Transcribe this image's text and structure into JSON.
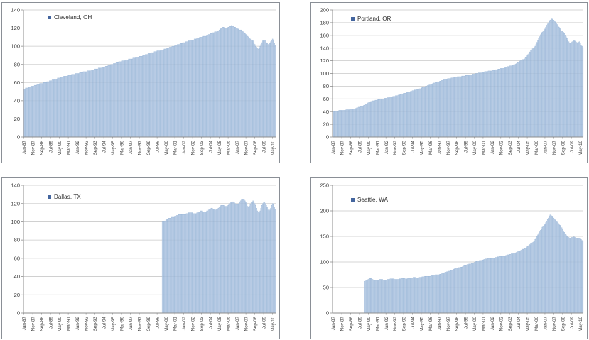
{
  "page": {
    "background": "#FFFFFF"
  },
  "colors": {
    "bar_fill": "#B9CCE4",
    "bar_stroke": "#8FAFD4",
    "grid": "#C9C9C9",
    "axis": "#8E8E8E",
    "tick_text": "#3B3B3B",
    "legend_marker": "#44659E",
    "panel_border": "#8A8F96"
  },
  "chart_data": {
    "type": "bar",
    "grid": true,
    "legend_position": "top-left-inside",
    "x_start": "Jan-87",
    "x_end": "Aug-10",
    "total_months": 284,
    "x_label_interval_months": 10,
    "x_tick_labels": [
      "Jan-87",
      "Nov-87",
      "Sep-88",
      "Jul-89",
      "May-90",
      "Mar-91",
      "Jan-92",
      "Nov-92",
      "Sep-93",
      "Jul-94",
      "May-95",
      "Mar-96",
      "Jan-97",
      "Nov-97",
      "Sep-98",
      "Jul-99",
      "May-00",
      "Mar-01",
      "Jan-02",
      "Nov-02",
      "Sep-03",
      "Jul-04",
      "May-05",
      "Mar-06",
      "Jan-07",
      "Nov-07",
      "Sep-08",
      "Jul-09",
      "May-10"
    ],
    "charts": [
      {
        "legend": "Cleveland, OH",
        "ylim": [
          0,
          140
        ],
        "y_step": 20,
        "start_month": "Jan-87",
        "start_offset": 0,
        "values": [
          53,
          53,
          54,
          54,
          54,
          55,
          55,
          55,
          56,
          56,
          56,
          56,
          57,
          57,
          57,
          58,
          58,
          58,
          59,
          59,
          59,
          59,
          60,
          60,
          60,
          60,
          61,
          61,
          61,
          62,
          62,
          62,
          63,
          63,
          63,
          64,
          64,
          64,
          65,
          65,
          65,
          66,
          66,
          66,
          66,
          67,
          67,
          67,
          67,
          67,
          68,
          68,
          68,
          68,
          69,
          69,
          69,
          69,
          70,
          70,
          70,
          70,
          70,
          71,
          71,
          71,
          71,
          72,
          72,
          72,
          72,
          72,
          73,
          73,
          73,
          73,
          74,
          74,
          74,
          74,
          75,
          75,
          75,
          75,
          76,
          76,
          76,
          76,
          77,
          77,
          77,
          77,
          78,
          78,
          78,
          79,
          79,
          79,
          80,
          80,
          80,
          81,
          81,
          81,
          82,
          82,
          82,
          83,
          83,
          83,
          83,
          84,
          84,
          84,
          85,
          85,
          85,
          85,
          86,
          86,
          86,
          86,
          86,
          87,
          87,
          87,
          88,
          88,
          88,
          88,
          89,
          89,
          89,
          89,
          90,
          90,
          90,
          91,
          91,
          91,
          92,
          92,
          92,
          92,
          93,
          93,
          93,
          94,
          94,
          94,
          95,
          95,
          95,
          95,
          96,
          96,
          96,
          96,
          97,
          97,
          97,
          98,
          98,
          98,
          99,
          99,
          99,
          100,
          100,
          100,
          101,
          101,
          101,
          102,
          102,
          102,
          103,
          103,
          103,
          104,
          104,
          104,
          105,
          105,
          105,
          106,
          106,
          106,
          107,
          107,
          107,
          107,
          108,
          108,
          108,
          109,
          109,
          109,
          110,
          110,
          110,
          110,
          111,
          111,
          111,
          111,
          112,
          112,
          113,
          113,
          114,
          114,
          114,
          115,
          115,
          116,
          116,
          116,
          117,
          117,
          118,
          119,
          120,
          120,
          121,
          121,
          120,
          120,
          120,
          120,
          121,
          121,
          122,
          122,
          123,
          122,
          122,
          121,
          121,
          120,
          120,
          119,
          119,
          118,
          118,
          118,
          117,
          116,
          115,
          114,
          113,
          112,
          111,
          110,
          109,
          108,
          107,
          107,
          106,
          104,
          102,
          100,
          99,
          98,
          97,
          98,
          100,
          102,
          104,
          106,
          107,
          107,
          106,
          104,
          103,
          102,
          102,
          103,
          105,
          107,
          108,
          106,
          103,
          101
        ]
      },
      {
        "legend": "Portland, OR",
        "ylim": [
          0,
          200
        ],
        "y_step": 20,
        "start_month": "Jan-87",
        "start_offset": 0,
        "values": [
          41,
          41,
          41,
          41,
          41,
          41,
          41,
          42,
          42,
          42,
          42,
          42,
          42,
          42,
          42,
          43,
          43,
          43,
          43,
          43,
          44,
          44,
          44,
          44,
          44,
          45,
          45,
          46,
          46,
          47,
          47,
          48,
          48,
          49,
          49,
          50,
          50,
          51,
          52,
          53,
          54,
          55,
          55,
          56,
          56,
          57,
          57,
          57,
          58,
          58,
          58,
          59,
          59,
          59,
          60,
          60,
          60,
          60,
          61,
          61,
          61,
          61,
          62,
          62,
          62,
          63,
          63,
          63,
          64,
          64,
          64,
          65,
          65,
          65,
          66,
          66,
          67,
          67,
          68,
          68,
          69,
          69,
          69,
          70,
          70,
          70,
          71,
          71,
          72,
          72,
          73,
          73,
          74,
          74,
          74,
          75,
          75,
          75,
          76,
          76,
          77,
          78,
          78,
          79,
          79,
          80,
          80,
          81,
          81,
          82,
          82,
          83,
          83,
          84,
          85,
          85,
          86,
          86,
          87,
          87,
          87,
          88,
          88,
          89,
          89,
          90,
          90,
          91,
          91,
          91,
          92,
          92,
          92,
          92,
          93,
          93,
          93,
          94,
          94,
          94,
          94,
          95,
          95,
          95,
          95,
          95,
          96,
          96,
          96,
          96,
          97,
          97,
          97,
          97,
          98,
          98,
          98,
          98,
          99,
          99,
          99,
          100,
          100,
          100,
          100,
          101,
          101,
          101,
          101,
          102,
          102,
          102,
          103,
          103,
          103,
          103,
          104,
          104,
          104,
          104,
          104,
          105,
          105,
          105,
          106,
          106,
          106,
          107,
          107,
          107,
          108,
          108,
          108,
          108,
          109,
          109,
          110,
          110,
          111,
          111,
          112,
          112,
          112,
          113,
          113,
          114,
          114,
          115,
          116,
          117,
          118,
          119,
          120,
          121,
          121,
          122,
          122,
          123,
          125,
          126,
          128,
          130,
          132,
          134,
          136,
          137,
          139,
          140,
          141,
          143,
          146,
          149,
          152,
          155,
          158,
          161,
          163,
          165,
          166,
          168,
          170,
          173,
          176,
          178,
          180,
          182,
          184,
          185,
          186,
          185,
          184,
          183,
          181,
          179,
          177,
          175,
          173,
          171,
          169,
          167,
          166,
          165,
          163,
          160,
          158,
          155,
          152,
          150,
          148,
          148,
          149,
          150,
          151,
          152,
          151,
          150,
          149,
          148,
          149,
          150,
          148,
          145,
          143,
          141
        ]
      },
      {
        "legend": "Dallas, TX",
        "ylim": [
          0,
          140
        ],
        "y_step": 20,
        "start_month": "Jan-00",
        "start_offset": 156,
        "values": [
          100,
          100,
          101,
          101,
          102,
          103,
          103,
          104,
          104,
          104,
          105,
          105,
          105,
          105,
          106,
          106,
          107,
          107,
          108,
          108,
          108,
          108,
          108,
          108,
          108,
          108,
          108,
          109,
          109,
          110,
          110,
          110,
          110,
          110,
          110,
          109,
          109,
          109,
          109,
          110,
          110,
          111,
          111,
          112,
          112,
          112,
          111,
          111,
          111,
          111,
          112,
          112,
          113,
          114,
          114,
          115,
          115,
          114,
          114,
          113,
          113,
          114,
          114,
          115,
          116,
          117,
          118,
          118,
          118,
          118,
          117,
          117,
          117,
          117,
          118,
          119,
          120,
          121,
          122,
          122,
          122,
          121,
          120,
          119,
          119,
          119,
          120,
          122,
          123,
          124,
          125,
          125,
          124,
          123,
          121,
          119,
          117,
          116,
          117,
          119,
          121,
          122,
          123,
          122,
          120,
          118,
          115,
          112,
          111,
          110,
          112,
          115,
          118,
          120,
          121,
          121,
          120,
          118,
          116,
          113,
          112,
          113,
          115,
          118,
          120,
          119,
          116,
          114
        ]
      },
      {
        "legend": "Seattle, WA",
        "ylim": [
          0,
          250
        ],
        "y_step": 50,
        "start_month": "Jan-90",
        "start_offset": 36,
        "values": [
          62,
          63,
          64,
          65,
          66,
          67,
          68,
          68,
          67,
          66,
          65,
          64,
          64,
          64,
          65,
          65,
          65,
          66,
          66,
          66,
          66,
          65,
          65,
          65,
          65,
          65,
          66,
          66,
          66,
          67,
          67,
          67,
          67,
          67,
          66,
          66,
          66,
          66,
          66,
          67,
          67,
          67,
          68,
          68,
          68,
          68,
          67,
          67,
          67,
          68,
          68,
          68,
          69,
          69,
          69,
          70,
          70,
          70,
          69,
          69,
          69,
          69,
          70,
          70,
          70,
          71,
          71,
          71,
          72,
          72,
          72,
          72,
          72,
          72,
          72,
          73,
          73,
          74,
          74,
          74,
          75,
          75,
          75,
          75,
          75,
          76,
          76,
          77,
          78,
          78,
          79,
          80,
          80,
          81,
          81,
          82,
          82,
          83,
          84,
          84,
          85,
          86,
          87,
          87,
          88,
          88,
          89,
          89,
          89,
          90,
          90,
          91,
          92,
          93,
          93,
          94,
          95,
          95,
          96,
          96,
          96,
          97,
          98,
          98,
          99,
          100,
          101,
          101,
          102,
          102,
          103,
          103,
          103,
          104,
          104,
          105,
          105,
          106,
          106,
          107,
          107,
          107,
          107,
          107,
          107,
          107,
          108,
          108,
          109,
          109,
          110,
          110,
          110,
          111,
          111,
          111,
          111,
          111,
          112,
          112,
          113,
          113,
          114,
          114,
          115,
          115,
          116,
          116,
          116,
          117,
          117,
          118,
          119,
          120,
          121,
          122,
          122,
          123,
          124,
          125,
          125,
          126,
          127,
          128,
          130,
          131,
          133,
          134,
          136,
          137,
          138,
          139,
          141,
          144,
          147,
          150,
          153,
          156,
          159,
          162,
          165,
          168,
          170,
          172,
          174,
          177,
          180,
          183,
          186,
          189,
          192,
          191,
          190,
          188,
          186,
          184,
          182,
          180,
          178,
          176,
          174,
          172,
          170,
          167,
          164,
          161,
          158,
          155,
          153,
          151,
          149,
          148,
          147,
          147,
          148,
          148,
          149,
          149,
          148,
          147,
          146,
          146,
          147,
          147,
          146,
          144,
          142,
          140
        ]
      }
    ]
  }
}
